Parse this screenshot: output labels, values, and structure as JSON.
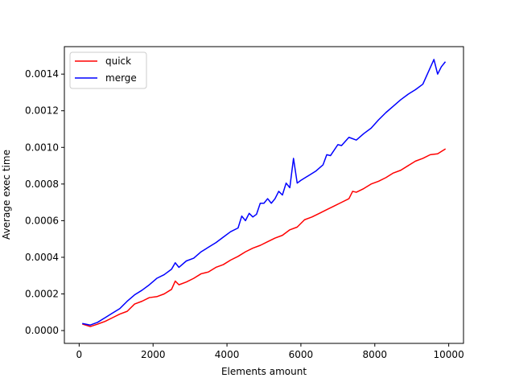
{
  "chart_data": {
    "type": "line",
    "title": "",
    "xlabel": "Elements amount",
    "ylabel": "Average exec time",
    "xlim": [
      -400,
      10400
    ],
    "ylim": [
      -7e-05,
      0.00155
    ],
    "x_ticks": [
      {
        "value": 0,
        "label": "0"
      },
      {
        "value": 2000,
        "label": "2000"
      },
      {
        "value": 4000,
        "label": "4000"
      },
      {
        "value": 6000,
        "label": "6000"
      },
      {
        "value": 8000,
        "label": "8000"
      },
      {
        "value": 10000,
        "label": "10000"
      }
    ],
    "y_ticks": [
      {
        "value": 0.0,
        "label": "0.0000"
      },
      {
        "value": 0.0002,
        "label": "0.0002"
      },
      {
        "value": 0.0004,
        "label": "0.0004"
      },
      {
        "value": 0.0006,
        "label": "0.0006"
      },
      {
        "value": 0.0008,
        "label": "0.0008"
      },
      {
        "value": 0.001,
        "label": "0.0010"
      },
      {
        "value": 0.0012,
        "label": "0.0012"
      },
      {
        "value": 0.0014,
        "label": "0.0014"
      }
    ],
    "grid": false,
    "legend": "top-left",
    "series": [
      {
        "name": "quick",
        "color": "#ff0000",
        "points": [
          [
            100,
            3.5e-05
          ],
          [
            300,
            2.2e-05
          ],
          [
            500,
            3.5e-05
          ],
          [
            700,
            5e-05
          ],
          [
            900,
            7e-05
          ],
          [
            1100,
            9e-05
          ],
          [
            1300,
            0.000105
          ],
          [
            1500,
            0.000145
          ],
          [
            1700,
            0.00016
          ],
          [
            1900,
            0.00018
          ],
          [
            2100,
            0.000185
          ],
          [
            2300,
            0.0002
          ],
          [
            2500,
            0.000225
          ],
          [
            2600,
            0.00027
          ],
          [
            2700,
            0.00025
          ],
          [
            2900,
            0.000265
          ],
          [
            3100,
            0.000285
          ],
          [
            3300,
            0.00031
          ],
          [
            3500,
            0.00032
          ],
          [
            3700,
            0.000345
          ],
          [
            3900,
            0.00036
          ],
          [
            4100,
            0.000385
          ],
          [
            4300,
            0.000405
          ],
          [
            4500,
            0.00043
          ],
          [
            4700,
            0.00045
          ],
          [
            4900,
            0.000465
          ],
          [
            5100,
            0.000485
          ],
          [
            5300,
            0.000505
          ],
          [
            5500,
            0.00052
          ],
          [
            5700,
            0.00055
          ],
          [
            5900,
            0.000565
          ],
          [
            6100,
            0.000605
          ],
          [
            6300,
            0.00062
          ],
          [
            6500,
            0.00064
          ],
          [
            6700,
            0.00066
          ],
          [
            6900,
            0.00068
          ],
          [
            7100,
            0.0007
          ],
          [
            7300,
            0.00072
          ],
          [
            7400,
            0.00076
          ],
          [
            7500,
            0.000755
          ],
          [
            7700,
            0.000775
          ],
          [
            7900,
            0.0008
          ],
          [
            8100,
            0.000815
          ],
          [
            8300,
            0.000835
          ],
          [
            8500,
            0.00086
          ],
          [
            8700,
            0.000875
          ],
          [
            8900,
            0.0009
          ],
          [
            9100,
            0.000925
          ],
          [
            9300,
            0.00094
          ],
          [
            9500,
            0.00096
          ],
          [
            9700,
            0.000965
          ],
          [
            9900,
            0.00099
          ]
        ]
      },
      {
        "name": "merge",
        "color": "#0000ff",
        "points": [
          [
            100,
            3.8e-05
          ],
          [
            300,
            3e-05
          ],
          [
            500,
            4.5e-05
          ],
          [
            700,
            7e-05
          ],
          [
            900,
            9.5e-05
          ],
          [
            1100,
            0.00012
          ],
          [
            1300,
            0.00016
          ],
          [
            1500,
            0.000195
          ],
          [
            1700,
            0.00022
          ],
          [
            1900,
            0.00025
          ],
          [
            2100,
            0.000285
          ],
          [
            2300,
            0.000305
          ],
          [
            2500,
            0.000335
          ],
          [
            2600,
            0.00037
          ],
          [
            2700,
            0.000345
          ],
          [
            2900,
            0.00038
          ],
          [
            3100,
            0.000395
          ],
          [
            3300,
            0.00043
          ],
          [
            3500,
            0.000455
          ],
          [
            3700,
            0.00048
          ],
          [
            3900,
            0.00051
          ],
          [
            4100,
            0.00054
          ],
          [
            4300,
            0.00056
          ],
          [
            4400,
            0.000625
          ],
          [
            4500,
            0.0006
          ],
          [
            4600,
            0.00064
          ],
          [
            4700,
            0.00062
          ],
          [
            4800,
            0.000635
          ],
          [
            4900,
            0.000695
          ],
          [
            5000,
            0.000695
          ],
          [
            5100,
            0.00072
          ],
          [
            5200,
            0.000695
          ],
          [
            5300,
            0.00072
          ],
          [
            5400,
            0.00076
          ],
          [
            5500,
            0.00074
          ],
          [
            5600,
            0.000805
          ],
          [
            5700,
            0.00078
          ],
          [
            5800,
            0.00094
          ],
          [
            5900,
            0.000805
          ],
          [
            6000,
            0.00082
          ],
          [
            6200,
            0.000845
          ],
          [
            6400,
            0.00087
          ],
          [
            6600,
            0.000905
          ],
          [
            6700,
            0.00096
          ],
          [
            6800,
            0.000955
          ],
          [
            7000,
            0.001015
          ],
          [
            7100,
            0.00101
          ],
          [
            7300,
            0.001055
          ],
          [
            7500,
            0.00104
          ],
          [
            7700,
            0.001075
          ],
          [
            7900,
            0.001105
          ],
          [
            8100,
            0.00115
          ],
          [
            8300,
            0.00119
          ],
          [
            8500,
            0.001225
          ],
          [
            8700,
            0.00126
          ],
          [
            8900,
            0.00129
          ],
          [
            9100,
            0.001315
          ],
          [
            9300,
            0.001345
          ],
          [
            9600,
            0.00148
          ],
          [
            9700,
            0.0014
          ],
          [
            9800,
            0.00144
          ],
          [
            9900,
            0.001465
          ]
        ]
      }
    ]
  }
}
